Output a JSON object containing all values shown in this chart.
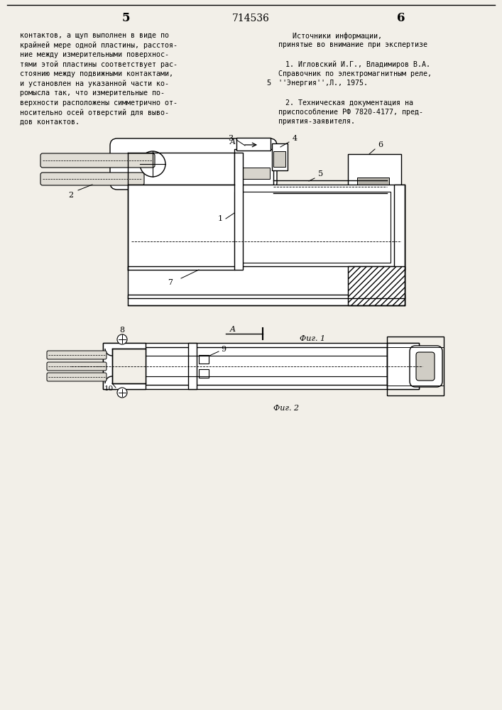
{
  "bg_color": "#f2efe8",
  "header": {
    "page_left": "5",
    "patent_number": "714536",
    "page_right": "6"
  }
}
